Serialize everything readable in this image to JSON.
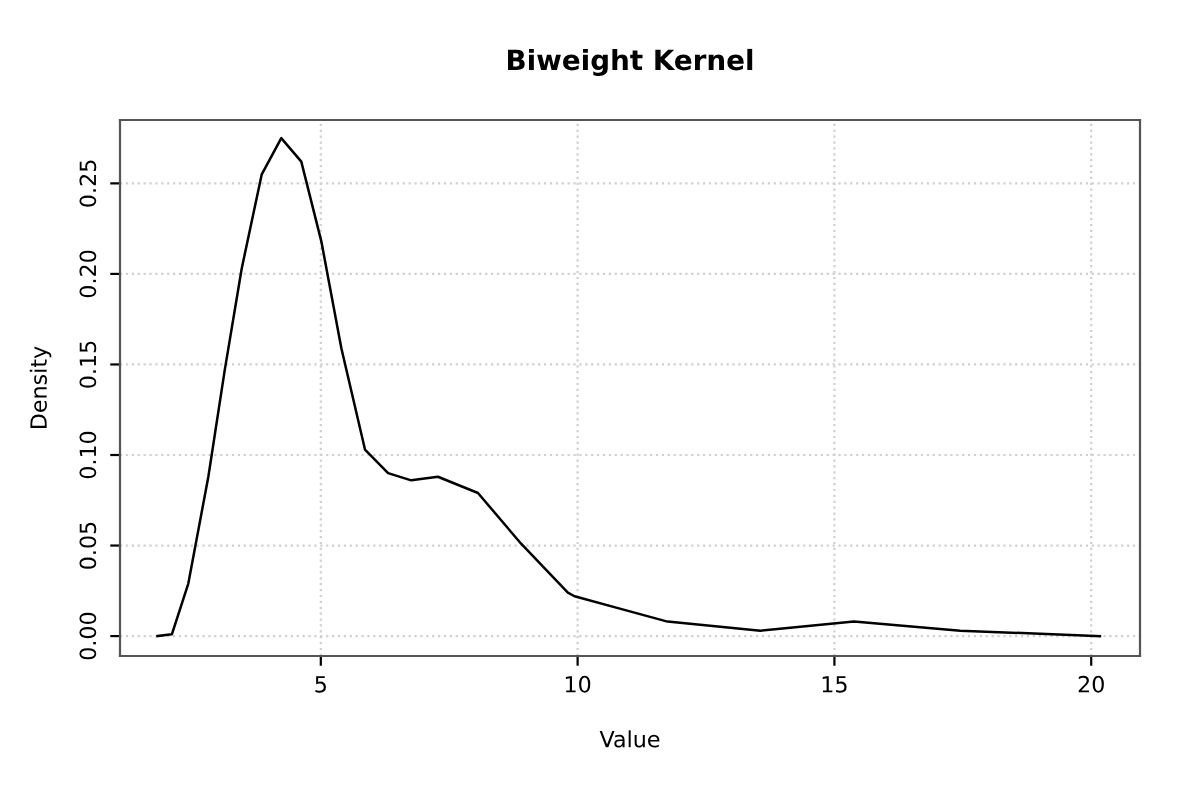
{
  "chart_data": {
    "type": "line",
    "title": "Biweight Kernel",
    "xlabel": "Value",
    "ylabel": "Density",
    "x": [
      1.82,
      2.1,
      2.42,
      2.81,
      3.13,
      3.46,
      3.85,
      4.23,
      4.62,
      5.01,
      5.4,
      5.86,
      6.31,
      6.76,
      7.28,
      8.06,
      8.9,
      9.81,
      9.94,
      10.84,
      11.75,
      13.56,
      15.38,
      17.45,
      20.17
    ],
    "series": [
      {
        "color": "#000000",
        "values": [
          0,
          0.001,
          0.029,
          0.088,
          0.147,
          0.203,
          0.255,
          0.275,
          0.262,
          0.218,
          0.159,
          0.103,
          0.09,
          0.086,
          0.088,
          0.079,
          0.051,
          0.024,
          0.022,
          0.015,
          0.008,
          0.003,
          0.008,
          0.003,
          0
        ]
      }
    ],
    "xlim": [
      1.09,
      20.95
    ],
    "ylim": [
      -0.011,
      0.285
    ],
    "xticks": [
      5,
      10,
      15,
      20
    ],
    "yticks": [
      {
        "value": 0,
        "label": "0.00"
      },
      0.05,
      {
        "value": 0.1,
        "label": "0.10"
      },
      0.15,
      {
        "value": 0.2,
        "label": "0.20"
      },
      0.25
    ],
    "grid": true,
    "marker": "none",
    "line_style": "solid"
  }
}
